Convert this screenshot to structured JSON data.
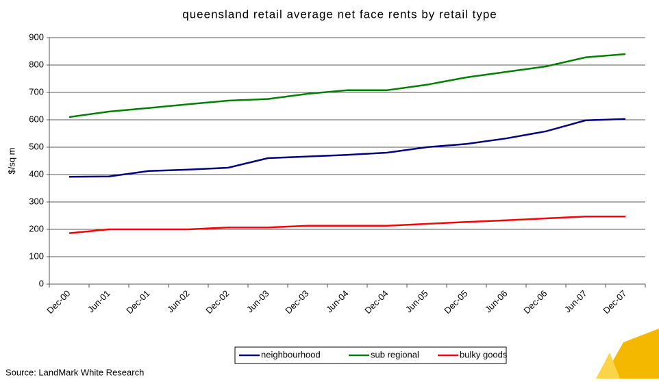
{
  "chart_data": {
    "type": "line",
    "title": "queensland retail average net face rents by retail type",
    "y_label": "$/sq m",
    "source": "Source: LandMark White Research",
    "categories": [
      "Dec-00",
      "Jun-01",
      "Dec-01",
      "Jun-02",
      "Dec-02",
      "Jun-03",
      "Dec-03",
      "Jun-04",
      "Dec-04",
      "Jun-05",
      "Dec-05",
      "Jun-06",
      "Dec-06",
      "Jun-07",
      "Dec-07"
    ],
    "series": [
      {
        "name": "neighbourhood",
        "color": "#000080",
        "values": [
          392,
          393,
          413,
          418,
          425,
          460,
          466,
          472,
          480,
          500,
          512,
          532,
          558,
          598,
          603
        ]
      },
      {
        "name": "sub regional",
        "color": "#008000",
        "values": [
          610,
          630,
          643,
          657,
          670,
          676,
          695,
          708,
          708,
          728,
          755,
          775,
          795,
          828,
          840
        ]
      },
      {
        "name": "bulky goods",
        "color": "#ff0000",
        "values": [
          186,
          200,
          200,
          200,
          207,
          207,
          213,
          213,
          213,
          220,
          227,
          233,
          240,
          247,
          247
        ]
      }
    ],
    "ylim": [
      0,
      900
    ],
    "yticks": [
      0,
      100,
      200,
      300,
      400,
      500,
      600,
      700,
      800,
      900
    ],
    "grid": true,
    "legend": "bottom"
  }
}
